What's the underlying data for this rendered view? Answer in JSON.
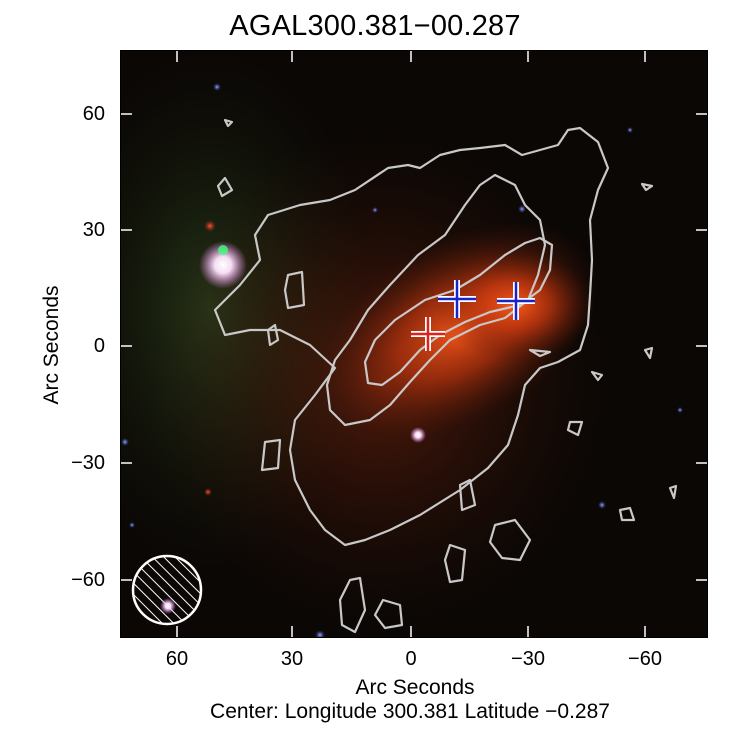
{
  "title": "AGAL300.381−00.287",
  "axes": {
    "xlabel": "Arc Seconds",
    "ylabel": "Arc Seconds",
    "xticks": [
      "60",
      "30",
      "0",
      "−30",
      "−60"
    ],
    "yticks": [
      "60",
      "30",
      "0",
      "−30",
      "−60"
    ]
  },
  "footer": {
    "center_text": "Center:  Longitude 300.381 Latitude −0.287"
  },
  "colors": {
    "background": "#0b0705",
    "contour": "#c8c8c8",
    "marker_red": "#e0201c",
    "marker_blue": "#1a22c8",
    "nebula": "#c8380f"
  },
  "markers": [
    {
      "type": "red-cross",
      "label": ""
    },
    {
      "type": "blue-cross",
      "label": ""
    },
    {
      "type": "blue-cross",
      "label": ""
    }
  ],
  "beam_icon": "hatched-circle"
}
